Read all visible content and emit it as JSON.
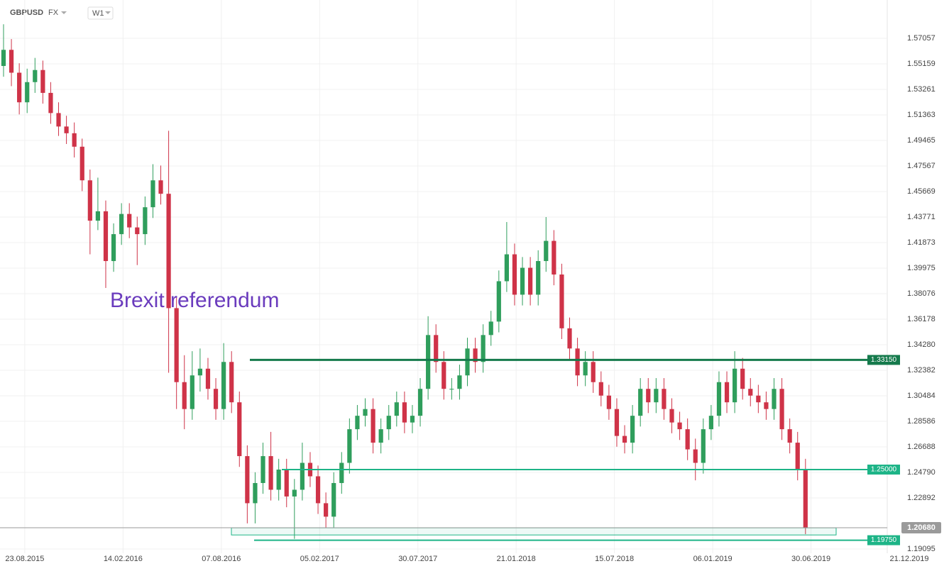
{
  "header": {
    "symbol": "GBPUSD",
    "market": "FX",
    "timeframe": "W1"
  },
  "chart_data": {
    "type": "candlestick",
    "annotation": "Brexit referendum",
    "up_color": "#2f9e5c",
    "down_color": "#cf3348",
    "grid": true,
    "xlim": [
      -0.45,
      112.4
    ],
    "xticks": [
      {
        "value": 2.7,
        "label": "23.08.2015"
      },
      {
        "value": 15.2,
        "label": "14.02.2016"
      },
      {
        "value": 27.7,
        "label": "07.08.2016"
      },
      {
        "value": 40.2,
        "label": "05.02.2017"
      },
      {
        "value": 52.7,
        "label": "30.07.2017"
      },
      {
        "value": 65.2,
        "label": "21.01.2018"
      },
      {
        "value": 77.7,
        "label": "15.07.2018"
      },
      {
        "value": 90.2,
        "label": "06.01.2019"
      },
      {
        "value": 102.7,
        "label": "30.06.2019"
      },
      {
        "value": 115.2,
        "label": "21.12.2019"
      }
    ],
    "ylim": [
      1.18779,
      1.59904
    ],
    "yticks": [
      1.19095,
      1.22892,
      {
        "value": 1.2479,
        "label": "1.24790"
      },
      1.26688,
      1.28586,
      1.30484,
      1.32382,
      {
        "value": 1.3428,
        "label": "1.34280"
      },
      1.36178,
      1.38076,
      1.39975,
      1.41873,
      1.43771,
      1.45669,
      1.47567,
      1.49465,
      1.51363,
      1.53261,
      1.55159,
      1.57057
    ],
    "levels": [
      {
        "value": 1.3315,
        "label": "1.33150",
        "color": "#157a4c"
      },
      {
        "value": 1.25,
        "label": "1.25000",
        "color": "#1db487"
      },
      {
        "value": 1.1975,
        "label": "1.19750",
        "color": "#1db487"
      }
    ],
    "zone": [
      1.2014,
      1.2067
    ],
    "last_price": {
      "value": 1.2068,
      "label": "1.20680"
    },
    "candles": [
      [
        1.55,
        1.581,
        1.542,
        1.562
      ],
      [
        1.562,
        1.57,
        1.535,
        1.545
      ],
      [
        1.545,
        1.552,
        1.514,
        1.523
      ],
      [
        1.523,
        1.548,
        1.515,
        1.538
      ],
      [
        1.538,
        1.556,
        1.53,
        1.547
      ],
      [
        1.547,
        1.554,
        1.522,
        1.53
      ],
      [
        1.53,
        1.538,
        1.507,
        1.515
      ],
      [
        1.515,
        1.523,
        1.498,
        1.505
      ],
      [
        1.505,
        1.513,
        1.492,
        1.5
      ],
      [
        1.5,
        1.508,
        1.482,
        1.49
      ],
      [
        1.49,
        1.496,
        1.457,
        1.465
      ],
      [
        1.465,
        1.473,
        1.41,
        1.435
      ],
      [
        1.435,
        1.467,
        1.428,
        1.442
      ],
      [
        1.442,
        1.45,
        1.385,
        1.405
      ],
      [
        1.405,
        1.433,
        1.397,
        1.425
      ],
      [
        1.425,
        1.448,
        1.417,
        1.44
      ],
      [
        1.44,
        1.448,
        1.422,
        1.43
      ],
      [
        1.43,
        1.438,
        1.402,
        1.425
      ],
      [
        1.425,
        1.453,
        1.417,
        1.445
      ],
      [
        1.445,
        1.477,
        1.437,
        1.465
      ],
      [
        1.465,
        1.476,
        1.447,
        1.455
      ],
      [
        1.455,
        1.5018,
        1.322,
        1.37
      ],
      [
        1.37,
        1.378,
        1.295,
        1.315
      ],
      [
        1.315,
        1.335,
        1.28,
        1.295
      ],
      [
        1.295,
        1.338,
        1.287,
        1.32
      ],
      [
        1.32,
        1.34,
        1.308,
        1.325
      ],
      [
        1.325,
        1.333,
        1.302,
        1.31
      ],
      [
        1.31,
        1.318,
        1.287,
        1.295
      ],
      [
        1.295,
        1.344,
        1.287,
        1.33
      ],
      [
        1.33,
        1.338,
        1.292,
        1.3
      ],
      [
        1.3,
        1.308,
        1.252,
        1.26
      ],
      [
        1.26,
        1.268,
        1.21,
        1.225
      ],
      [
        1.225,
        1.248,
        1.21,
        1.24
      ],
      [
        1.24,
        1.27,
        1.232,
        1.26
      ],
      [
        1.26,
        1.278,
        1.227,
        1.235
      ],
      [
        1.235,
        1.258,
        1.227,
        1.25
      ],
      [
        1.25,
        1.258,
        1.222,
        1.23
      ],
      [
        1.23,
        1.243,
        1.1985,
        1.235
      ],
      [
        1.235,
        1.27,
        1.227,
        1.255
      ],
      [
        1.255,
        1.263,
        1.237,
        1.245
      ],
      [
        1.245,
        1.253,
        1.217,
        1.225
      ],
      [
        1.225,
        1.233,
        1.207,
        1.215
      ],
      [
        1.215,
        1.248,
        1.207,
        1.24
      ],
      [
        1.24,
        1.263,
        1.232,
        1.255
      ],
      [
        1.255,
        1.288,
        1.247,
        1.28
      ],
      [
        1.28,
        1.298,
        1.272,
        1.29
      ],
      [
        1.29,
        1.303,
        1.282,
        1.295
      ],
      [
        1.295,
        1.303,
        1.262,
        1.27
      ],
      [
        1.27,
        1.288,
        1.262,
        1.28
      ],
      [
        1.28,
        1.298,
        1.272,
        1.29
      ],
      [
        1.29,
        1.308,
        1.282,
        1.3
      ],
      [
        1.3,
        1.308,
        1.277,
        1.285
      ],
      [
        1.285,
        1.298,
        1.277,
        1.29
      ],
      [
        1.29,
        1.318,
        1.282,
        1.31
      ],
      [
        1.31,
        1.364,
        1.302,
        1.35
      ],
      [
        1.35,
        1.358,
        1.322,
        1.33
      ],
      [
        1.33,
        1.338,
        1.302,
        1.31
      ],
      [
        1.31,
        1.318,
        1.302,
        1.31
      ],
      [
        1.31,
        1.328,
        1.302,
        1.32
      ],
      [
        1.32,
        1.348,
        1.312,
        1.34
      ],
      [
        1.34,
        1.348,
        1.322,
        1.33
      ],
      [
        1.33,
        1.358,
        1.322,
        1.35
      ],
      [
        1.35,
        1.368,
        1.342,
        1.36
      ],
      [
        1.36,
        1.398,
        1.352,
        1.39
      ],
      [
        1.39,
        1.434,
        1.382,
        1.41
      ],
      [
        1.41,
        1.418,
        1.372,
        1.38
      ],
      [
        1.38,
        1.408,
        1.372,
        1.4
      ],
      [
        1.4,
        1.408,
        1.372,
        1.38
      ],
      [
        1.38,
        1.413,
        1.372,
        1.405
      ],
      [
        1.405,
        1.4377,
        1.397,
        1.42
      ],
      [
        1.42,
        1.428,
        1.387,
        1.395
      ],
      [
        1.395,
        1.403,
        1.347,
        1.355
      ],
      [
        1.355,
        1.363,
        1.332,
        1.34
      ],
      [
        1.34,
        1.348,
        1.312,
        1.32
      ],
      [
        1.32,
        1.338,
        1.312,
        1.33
      ],
      [
        1.33,
        1.338,
        1.307,
        1.315
      ],
      [
        1.315,
        1.323,
        1.297,
        1.305
      ],
      [
        1.305,
        1.313,
        1.287,
        1.295
      ],
      [
        1.295,
        1.303,
        1.267,
        1.275
      ],
      [
        1.275,
        1.283,
        1.262,
        1.27
      ],
      [
        1.27,
        1.298,
        1.262,
        1.29
      ],
      [
        1.29,
        1.318,
        1.282,
        1.31
      ],
      [
        1.31,
        1.318,
        1.292,
        1.3
      ],
      [
        1.3,
        1.318,
        1.292,
        1.31
      ],
      [
        1.31,
        1.318,
        1.287,
        1.295
      ],
      [
        1.295,
        1.303,
        1.277,
        1.285
      ],
      [
        1.285,
        1.293,
        1.272,
        1.28
      ],
      [
        1.28,
        1.288,
        1.257,
        1.265
      ],
      [
        1.265,
        1.273,
        1.242,
        1.255
      ],
      [
        1.255,
        1.288,
        1.247,
        1.28
      ],
      [
        1.28,
        1.298,
        1.272,
        1.29
      ],
      [
        1.29,
        1.323,
        1.282,
        1.315
      ],
      [
        1.315,
        1.323,
        1.292,
        1.3
      ],
      [
        1.3,
        1.338,
        1.292,
        1.325
      ],
      [
        1.325,
        1.333,
        1.302,
        1.31
      ],
      [
        1.31,
        1.318,
        1.297,
        1.305
      ],
      [
        1.305,
        1.313,
        1.292,
        1.3
      ],
      [
        1.3,
        1.308,
        1.287,
        1.295
      ],
      [
        1.295,
        1.318,
        1.287,
        1.31
      ],
      [
        1.31,
        1.318,
        1.272,
        1.28
      ],
      [
        1.28,
        1.288,
        1.262,
        1.27
      ],
      [
        1.27,
        1.278,
        1.242,
        1.25
      ],
      [
        1.25,
        1.258,
        1.202,
        1.2068
      ]
    ]
  }
}
